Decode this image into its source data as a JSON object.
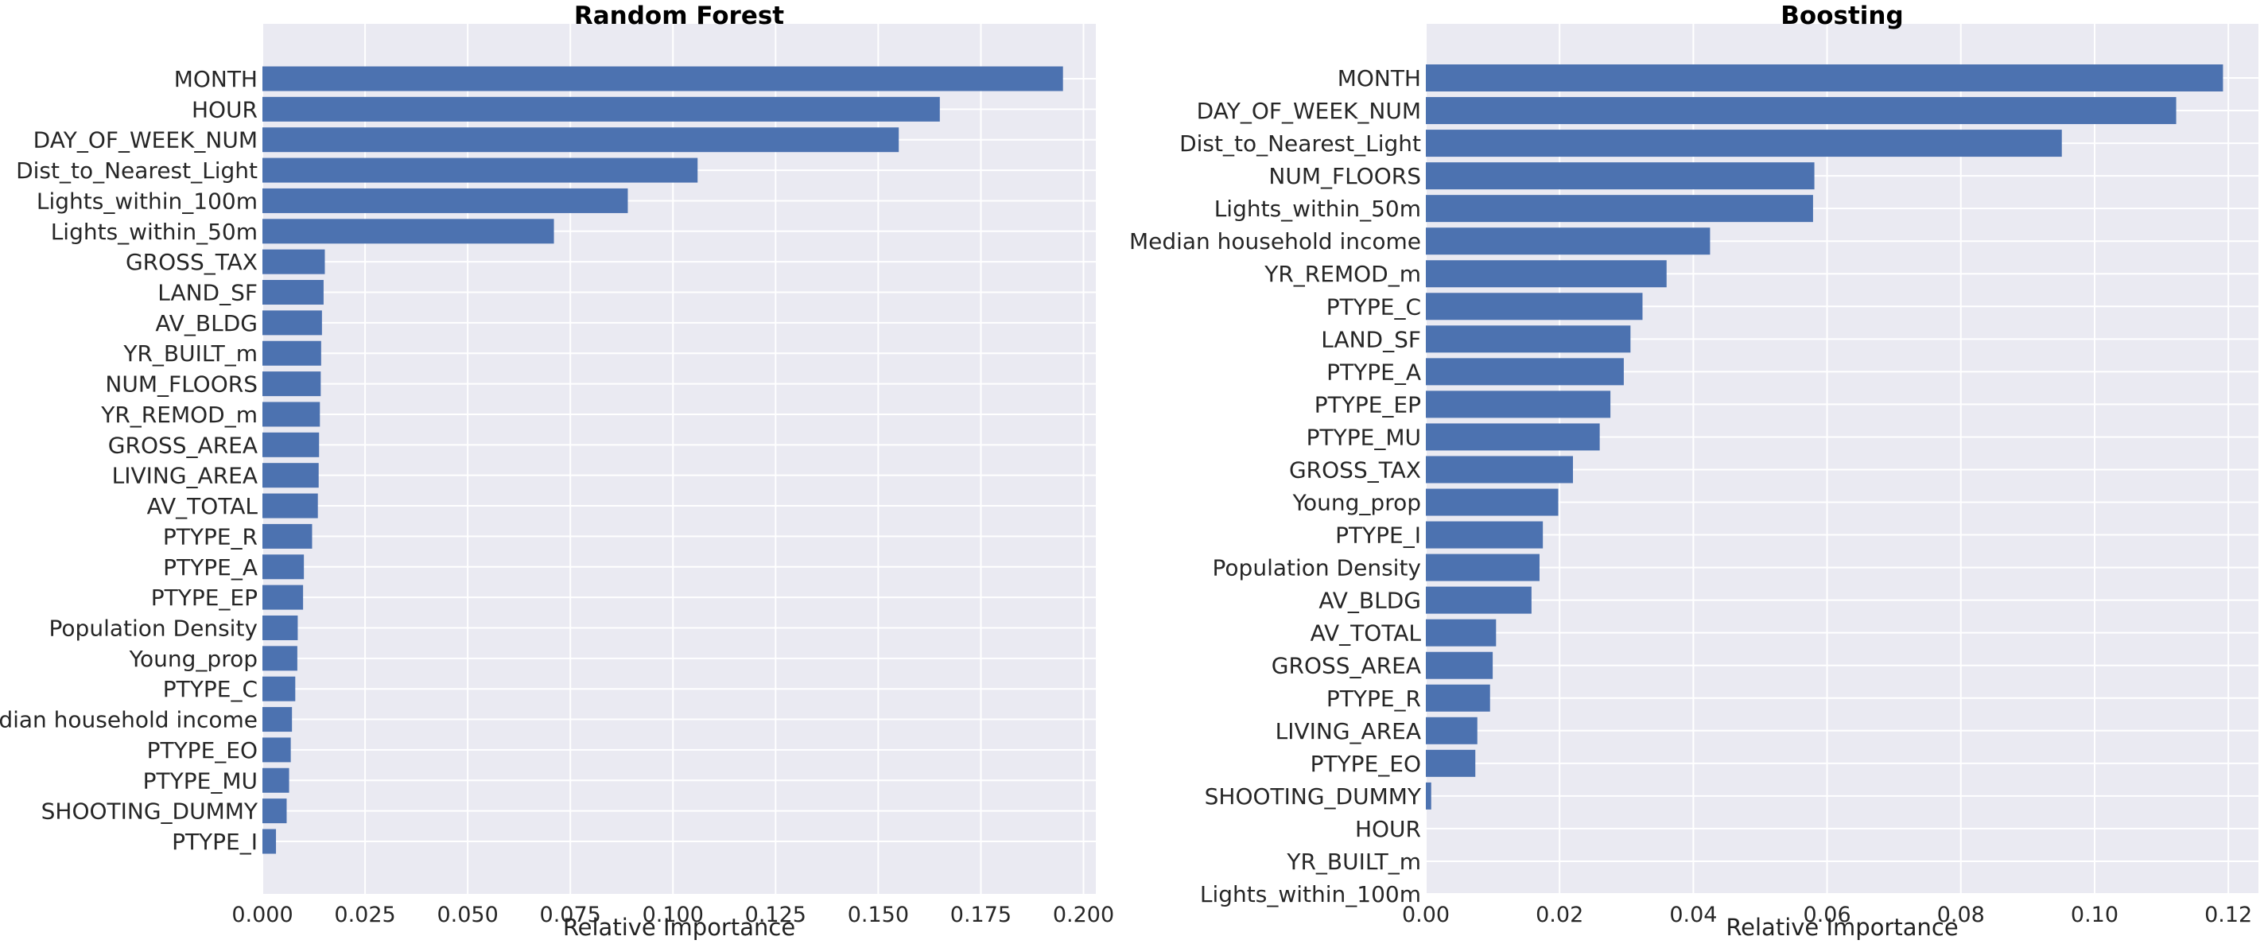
{
  "chart_data": [
    {
      "type": "bar",
      "orientation": "horizontal",
      "title": "Random Forest",
      "xlabel": "Relative Importance",
      "ylabel": "",
      "xlim": [
        0,
        0.203
      ],
      "xticks": [
        "0.000",
        "0.025",
        "0.050",
        "0.075",
        "0.100",
        "0.125",
        "0.150",
        "0.175",
        "0.200"
      ],
      "grid": true,
      "bar_color": "#4c72b0",
      "background": "#eaeaf2",
      "categories": [
        "MONTH",
        "HOUR",
        "DAY_OF_WEEK_NUM",
        "Dist_to_Nearest_Light",
        "Lights_within_100m",
        "Lights_within_50m",
        "GROSS_TAX",
        "LAND_SF",
        "AV_BLDG",
        "YR_BUILT_m",
        "NUM_FLOORS",
        "YR_REMOD_m",
        "GROSS_AREA",
        "LIVING_AREA",
        "AV_TOTAL",
        "PTYPE_R",
        "PTYPE_A",
        "PTYPE_EP",
        "Population Density",
        "Young_prop",
        "PTYPE_C",
        "Median household income",
        "PTYPE_EO",
        "PTYPE_MU",
        "SHOOTING_DUMMY",
        "PTYPE_I"
      ],
      "values": [
        0.195,
        0.165,
        0.155,
        0.106,
        0.089,
        0.071,
        0.0152,
        0.0149,
        0.0145,
        0.0143,
        0.0142,
        0.014,
        0.0138,
        0.0137,
        0.0135,
        0.0121,
        0.0101,
        0.0099,
        0.0086,
        0.0085,
        0.008,
        0.0072,
        0.0069,
        0.0065,
        0.0059,
        0.0033
      ]
    },
    {
      "type": "bar",
      "orientation": "horizontal",
      "title": "Boosting",
      "xlabel": "Relative Importance",
      "ylabel": "",
      "xlim": [
        0,
        0.1245
      ],
      "xticks": [
        "0.00",
        "0.02",
        "0.04",
        "0.06",
        "0.08",
        "0.10",
        "0.12"
      ],
      "grid": true,
      "bar_color": "#4c72b0",
      "background": "#eaeaf2",
      "categories": [
        "MONTH",
        "DAY_OF_WEEK_NUM",
        "Dist_to_Nearest_Light",
        "NUM_FLOORS",
        "Lights_within_50m",
        "Median household income",
        "YR_REMOD_m",
        "PTYPE_C",
        "LAND_SF",
        "PTYPE_A",
        "PTYPE_EP",
        "PTYPE_MU",
        "GROSS_TAX",
        "Young_prop",
        "PTYPE_I",
        "Population Density",
        "AV_BLDG",
        "AV_TOTAL",
        "GROSS_AREA",
        "PTYPE_R",
        "LIVING_AREA",
        "PTYPE_EO",
        "SHOOTING_DUMMY",
        "HOUR",
        "YR_BUILT_m",
        "Lights_within_100m"
      ],
      "values": [
        0.1192,
        0.1122,
        0.0951,
        0.0581,
        0.0579,
        0.0425,
        0.036,
        0.0324,
        0.0306,
        0.0296,
        0.0276,
        0.026,
        0.022,
        0.0198,
        0.0175,
        0.017,
        0.0158,
        0.0105,
        0.01,
        0.0096,
        0.0077,
        0.0074,
        0.0008,
        0.0,
        0.0,
        0.0
      ]
    }
  ]
}
